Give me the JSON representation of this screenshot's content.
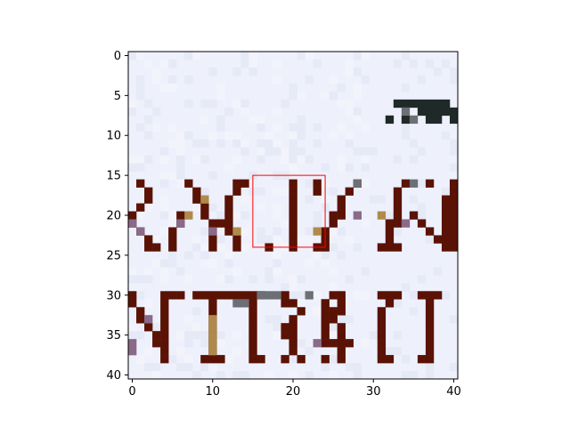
{
  "chart_data": {
    "type": "heatmap",
    "title": "",
    "xlabel": "",
    "ylabel": "",
    "xlim": [
      -0.5,
      40.5
    ],
    "ylim": [
      40.5,
      -0.5
    ],
    "y_inverted": true,
    "x_ticks": [
      "0",
      "10",
      "20",
      "30",
      "40"
    ],
    "y_ticks": [
      "0",
      "5",
      "10",
      "15",
      "20",
      "25",
      "30",
      "35",
      "40"
    ],
    "grid": false,
    "image": {
      "description_of_content": "pixelated crop of dark red text strokes on pale lavender background",
      "background_color": "#eef1fc",
      "stroke_color": "#5a1204",
      "dark_pixel_color": "#1f2a28",
      "grey_pixel_color": "#6c6f73",
      "tan_pixel_color": "#b08a4c",
      "mauve_pixel_color": "#8a6a88",
      "stroke_pixels": [
        [
          33,
          6
        ],
        [
          34,
          6
        ],
        [
          35,
          6
        ],
        [
          36,
          6
        ],
        [
          37,
          6
        ],
        [
          38,
          6
        ],
        [
          39,
          6
        ],
        [
          36,
          7
        ],
        [
          37,
          7
        ],
        [
          38,
          7
        ],
        [
          39,
          7
        ],
        [
          40,
          7
        ],
        [
          32,
          8
        ],
        [
          34,
          8
        ],
        [
          37,
          8
        ],
        [
          38,
          8
        ],
        [
          40,
          8
        ],
        [
          1,
          16
        ],
        [
          7,
          16
        ],
        [
          13,
          16
        ],
        [
          14,
          16
        ],
        [
          20,
          16
        ],
        [
          23,
          16
        ],
        [
          28,
          16
        ],
        [
          34,
          16
        ],
        [
          37,
          16
        ],
        [
          40,
          16
        ],
        [
          2,
          17
        ],
        [
          8,
          17
        ],
        [
          13,
          17
        ],
        [
          20,
          17
        ],
        [
          23,
          17
        ],
        [
          27,
          17
        ],
        [
          33,
          17
        ],
        [
          40,
          17
        ],
        [
          2,
          18
        ],
        [
          8,
          18
        ],
        [
          12,
          18
        ],
        [
          20,
          18
        ],
        [
          26,
          18
        ],
        [
          33,
          18
        ],
        [
          39,
          18
        ],
        [
          40,
          18
        ],
        [
          1,
          19
        ],
        [
          9,
          19
        ],
        [
          12,
          19
        ],
        [
          20,
          19
        ],
        [
          26,
          19
        ],
        [
          33,
          19
        ],
        [
          39,
          19
        ],
        [
          40,
          19
        ],
        [
          0,
          20
        ],
        [
          6,
          20
        ],
        [
          9,
          20
        ],
        [
          12,
          20
        ],
        [
          20,
          20
        ],
        [
          25,
          20
        ],
        [
          26,
          20
        ],
        [
          33,
          20
        ],
        [
          35,
          20
        ],
        [
          39,
          20
        ],
        [
          40,
          20
        ],
        [
          0,
          21
        ],
        [
          6,
          21
        ],
        [
          10,
          21
        ],
        [
          11,
          21
        ],
        [
          12,
          21
        ],
        [
          20,
          21
        ],
        [
          25,
          21
        ],
        [
          32,
          21
        ],
        [
          33,
          21
        ],
        [
          36,
          21
        ],
        [
          39,
          21
        ],
        [
          40,
          21
        ],
        [
          1,
          22
        ],
        [
          5,
          22
        ],
        [
          10,
          22
        ],
        [
          12,
          22
        ],
        [
          20,
          22
        ],
        [
          24,
          22
        ],
        [
          32,
          22
        ],
        [
          37,
          22
        ],
        [
          39,
          22
        ],
        [
          40,
          22
        ],
        [
          2,
          23
        ],
        [
          5,
          23
        ],
        [
          10,
          23
        ],
        [
          13,
          23
        ],
        [
          20,
          23
        ],
        [
          24,
          23
        ],
        [
          32,
          23
        ],
        [
          38,
          23
        ],
        [
          39,
          23
        ],
        [
          40,
          23
        ],
        [
          2,
          24
        ],
        [
          3,
          24
        ],
        [
          5,
          24
        ],
        [
          10,
          24
        ],
        [
          13,
          24
        ],
        [
          17,
          24
        ],
        [
          20,
          24
        ],
        [
          23,
          24
        ],
        [
          24,
          24
        ],
        [
          31,
          24
        ],
        [
          32,
          24
        ],
        [
          33,
          24
        ],
        [
          39,
          24
        ],
        [
          40,
          24
        ],
        [
          0,
          30
        ],
        [
          4,
          30
        ],
        [
          5,
          30
        ],
        [
          6,
          30
        ],
        [
          8,
          30
        ],
        [
          9,
          30
        ],
        [
          10,
          30
        ],
        [
          11,
          30
        ],
        [
          12,
          30
        ],
        [
          13,
          30
        ],
        [
          14,
          30
        ],
        [
          15,
          30
        ],
        [
          16,
          30
        ],
        [
          19,
          30
        ],
        [
          25,
          30
        ],
        [
          26,
          30
        ],
        [
          31,
          30
        ],
        [
          32,
          30
        ],
        [
          33,
          30
        ],
        [
          36,
          30
        ],
        [
          37,
          30
        ],
        [
          38,
          30
        ],
        [
          0,
          31
        ],
        [
          4,
          31
        ],
        [
          10,
          31
        ],
        [
          15,
          31
        ],
        [
          19,
          31
        ],
        [
          20,
          31
        ],
        [
          24,
          31
        ],
        [
          26,
          31
        ],
        [
          32,
          31
        ],
        [
          37,
          31
        ],
        [
          1,
          32
        ],
        [
          4,
          32
        ],
        [
          10,
          32
        ],
        [
          15,
          32
        ],
        [
          21,
          32
        ],
        [
          24,
          32
        ],
        [
          25,
          32
        ],
        [
          26,
          32
        ],
        [
          31,
          32
        ],
        [
          37,
          32
        ],
        [
          1,
          33
        ],
        [
          4,
          33
        ],
        [
          10,
          33
        ],
        [
          15,
          33
        ],
        [
          20,
          33
        ],
        [
          24,
          33
        ],
        [
          25,
          33
        ],
        [
          31,
          33
        ],
        [
          37,
          33
        ],
        [
          2,
          34
        ],
        [
          4,
          34
        ],
        [
          10,
          34
        ],
        [
          15,
          34
        ],
        [
          19,
          34
        ],
        [
          20,
          34
        ],
        [
          24,
          34
        ],
        [
          26,
          34
        ],
        [
          31,
          34
        ],
        [
          37,
          34
        ],
        [
          3,
          35
        ],
        [
          4,
          35
        ],
        [
          10,
          35
        ],
        [
          15,
          35
        ],
        [
          19,
          35
        ],
        [
          20,
          35
        ],
        [
          24,
          35
        ],
        [
          26,
          35
        ],
        [
          31,
          35
        ],
        [
          37,
          35
        ],
        [
          3,
          36
        ],
        [
          4,
          36
        ],
        [
          10,
          36
        ],
        [
          15,
          36
        ],
        [
          20,
          36
        ],
        [
          24,
          36
        ],
        [
          25,
          36
        ],
        [
          26,
          36
        ],
        [
          27,
          36
        ],
        [
          31,
          36
        ],
        [
          37,
          36
        ],
        [
          4,
          37
        ],
        [
          10,
          37
        ],
        [
          15,
          37
        ],
        [
          20,
          37
        ],
        [
          26,
          37
        ],
        [
          31,
          37
        ],
        [
          37,
          37
        ],
        [
          4,
          38
        ],
        [
          9,
          38
        ],
        [
          10,
          38
        ],
        [
          11,
          38
        ],
        [
          15,
          38
        ],
        [
          16,
          38
        ],
        [
          19,
          38
        ],
        [
          21,
          38
        ],
        [
          24,
          38
        ],
        [
          26,
          38
        ],
        [
          31,
          38
        ],
        [
          32,
          38
        ],
        [
          36,
          38
        ],
        [
          37,
          38
        ]
      ],
      "tan_pixels": [
        [
          9,
          18
        ],
        [
          7,
          20
        ],
        [
          31,
          20
        ],
        [
          10,
          33
        ],
        [
          10,
          34
        ],
        [
          10,
          35
        ],
        [
          10,
          36
        ],
        [
          10,
          37
        ],
        [
          13,
          22
        ],
        [
          23,
          22
        ]
      ],
      "mauve_pixels": [
        [
          0,
          21
        ],
        [
          1,
          22
        ],
        [
          6,
          21
        ],
        [
          10,
          22
        ],
        [
          28,
          20
        ],
        [
          34,
          21
        ],
        [
          0,
          36
        ],
        [
          0,
          37
        ],
        [
          23,
          36
        ],
        [
          2,
          33
        ]
      ],
      "grey_pixels": [
        [
          34,
          7
        ],
        [
          35,
          8
        ],
        [
          16,
          30
        ],
        [
          17,
          30
        ],
        [
          18,
          30
        ],
        [
          13,
          31
        ],
        [
          14,
          31
        ],
        [
          22,
          30
        ],
        [
          28,
          16
        ],
        [
          35,
          16
        ]
      ]
    },
    "highlight_box": {
      "x0": 15,
      "x1": 24,
      "y0": 15,
      "y1": 24,
      "color": "#ff0000"
    }
  }
}
